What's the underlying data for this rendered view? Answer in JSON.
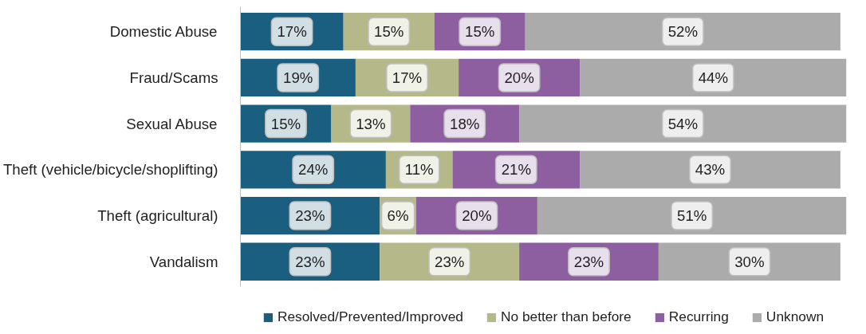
{
  "chart_data": {
    "type": "bar",
    "orientation": "horizontal",
    "stacked": true,
    "legend": "bottom",
    "grid": false,
    "categories": [
      "Domestic Abuse",
      "Fraud/Scams",
      "Sexual Abuse",
      "Theft (vehicle/bicycle/shoplifting)",
      "Theft (agricultural)",
      "Vandalism"
    ],
    "series": [
      {
        "name": "Resolved/Prevented/Improved",
        "color": "#1a5f80",
        "values": [
          17,
          19,
          15,
          24,
          23,
          23
        ],
        "value_labels": [
          "17%",
          "19%",
          "15%",
          "24%",
          "23%",
          "23%"
        ]
      },
      {
        "name": "No better than before",
        "color": "#b5b98a",
        "values": [
          15,
          17,
          13,
          11,
          6,
          23
        ],
        "value_labels": [
          "15%",
          "17%",
          "13%",
          "11%",
          "6%",
          "23%"
        ]
      },
      {
        "name": "Recurring",
        "color": "#8e5fa0",
        "values": [
          15,
          20,
          18,
          21,
          20,
          23
        ],
        "value_labels": [
          "15%",
          "20%",
          "18%",
          "21%",
          "20%",
          "23%"
        ]
      },
      {
        "name": "Unknown",
        "color": "#ababab",
        "values": [
          52,
          44,
          54,
          43,
          51,
          30
        ],
        "value_labels": [
          "52%",
          "44%",
          "54%",
          "43%",
          "51%",
          "30%"
        ]
      }
    ]
  }
}
